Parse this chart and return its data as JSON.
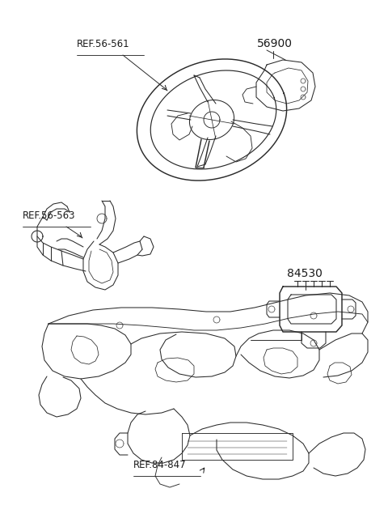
{
  "bg_color": "#ffffff",
  "line_color": "#2a2a2a",
  "text_color": "#1a1a1a",
  "label_56900": "56900",
  "label_ref56561": "REF.56-561",
  "label_ref56563": "REF.56-563",
  "label_84530": "84530",
  "label_ref84847": "REF.84-847",
  "fig_width": 4.8,
  "fig_height": 6.56,
  "dpi": 100
}
